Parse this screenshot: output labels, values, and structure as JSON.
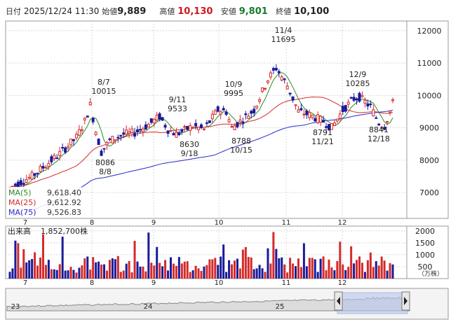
{
  "header": {
    "date_label": "日付",
    "datetime": "2025/12/24 11:30",
    "open_label": "始値",
    "open": "9,889",
    "high_label": "高値",
    "high": "10,130",
    "low_label": "安値",
    "low": "9,801",
    "close_label": "終値",
    "close": "10,100"
  },
  "legend": {
    "ma5_label": "MA(5)",
    "ma5": "9,618.40",
    "ma25_label": "MA(25)",
    "ma25": "9,612.92",
    "ma75_label": "MA(75)",
    "ma75": "9,526.83"
  },
  "volume_panel": {
    "label": "出来高",
    "value": "1,852,700株",
    "unit": "（万株）"
  },
  "colors": {
    "up": "#d42a2a",
    "down": "#1a1a9a",
    "ma5": "#2a8a2a",
    "ma25": "#d42a2a",
    "ma75": "#2828cc",
    "nav_fill": "#b8c6ee"
  },
  "chart_data": {
    "type": "candlestick",
    "y_ticks": [
      7000,
      8000,
      9000,
      10000,
      11000,
      12000
    ],
    "ylim": [
      6200,
      12300
    ],
    "month_labels": [
      "7",
      "8",
      "9",
      "10",
      "11",
      "12"
    ],
    "annotations": [
      {
        "date": "8/7",
        "value": "10015"
      },
      {
        "date": "8/8",
        "value": "8086"
      },
      {
        "date": "9/11",
        "value": "9533"
      },
      {
        "date": "9/18",
        "value": "8630"
      },
      {
        "date": "10/9",
        "value": "9995"
      },
      {
        "date": "10/15",
        "value": "8788"
      },
      {
        "date": "11/4",
        "value": "11695"
      },
      {
        "date": "11/21",
        "value": "8791"
      },
      {
        "date": "12/9",
        "value": "10285"
      },
      {
        "date": "12/18",
        "value": "8841"
      }
    ],
    "volume": {
      "y_ticks": [
        500,
        1000,
        1500,
        2000
      ],
      "ylim": [
        0,
        2200
      ]
    },
    "navigator": {
      "year_labels": [
        "23",
        "24",
        "25"
      ]
    }
  }
}
